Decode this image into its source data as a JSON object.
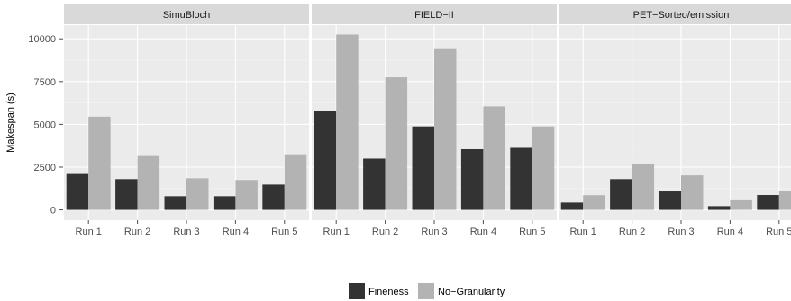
{
  "chart_data": {
    "type": "bar",
    "ylabel": "Makespan (s)",
    "ylim": [
      -600,
      10800
    ],
    "yticks": [
      0,
      2500,
      5000,
      7500,
      10000
    ],
    "ytick_labels": [
      "0",
      "2500",
      "5000",
      "7500",
      "10000"
    ],
    "categories": [
      "Run 1",
      "Run 2",
      "Run 3",
      "Run 4",
      "Run 5"
    ],
    "legend": {
      "position": "bottom",
      "entries": [
        "Fineness",
        "No−Granularity"
      ]
    },
    "colors": {
      "Fineness": "#333333",
      "No-Granularity": "#b3b3b3",
      "panel_bg": "#ebebeb",
      "strip_bg": "#d9d9d9",
      "grid": "#ffffff"
    },
    "grid": true,
    "panels": [
      {
        "title": "SimuBloch",
        "series": [
          {
            "name": "Fineness",
            "values": [
              2100,
              1800,
              800,
              800,
              1480
            ]
          },
          {
            "name": "No−Granularity",
            "values": [
              5450,
              3150,
              1850,
              1750,
              3250
            ]
          }
        ]
      },
      {
        "title": "FIELD−II",
        "series": [
          {
            "name": "Fineness",
            "values": [
              5780,
              3000,
              4880,
              3550,
              3630
            ]
          },
          {
            "name": "No−Granularity",
            "values": [
              10250,
              7750,
              9450,
              6050,
              4880
            ]
          }
        ]
      },
      {
        "title": "PET−Sorteo/emission",
        "series": [
          {
            "name": "Fineness",
            "values": [
              430,
              1800,
              1080,
              220,
              870
            ]
          },
          {
            "name": "No−Granularity",
            "values": [
              860,
              2680,
              2020,
              560,
              1080
            ]
          }
        ]
      }
    ]
  }
}
